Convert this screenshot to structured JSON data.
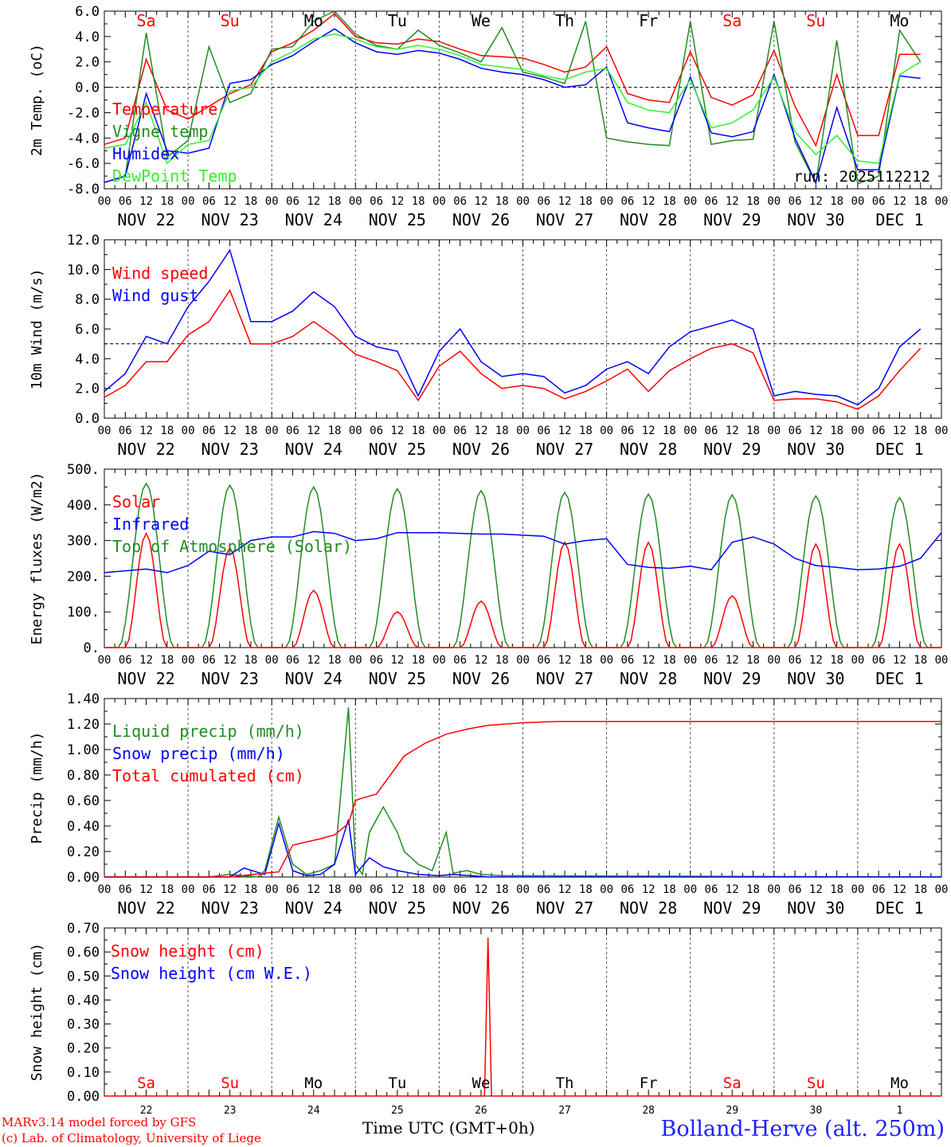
{
  "days": [
    "Sa",
    "Su",
    "Mo",
    "Tu",
    "We",
    "Th",
    "Fr",
    "Sa",
    "Su",
    "Mo"
  ],
  "day_colors": [
    "#ff0000",
    "#ff0000",
    "#000000",
    "#000000",
    "#000000",
    "#000000",
    "#000000",
    "#ff0000",
    "#ff0000",
    "#000000"
  ],
  "dates": [
    "NOV 22",
    "NOV 23",
    "NOV 24",
    "NOV 25",
    "NOV 26",
    "NOV 27",
    "NOV 28",
    "NOV 29",
    "NOV 30",
    "DEC  1"
  ],
  "day_numbers": [
    "22",
    "23",
    "24",
    "25",
    "26",
    "27",
    "28",
    "29",
    "30",
    "1"
  ],
  "hour_ticks": [
    "00",
    "06",
    "12",
    "18"
  ],
  "run_label": "run: 2025112212",
  "footer": {
    "model": "MARv3.14 model forced by GFS",
    "credit": "(c) Lab. of Climatology, University of Liege",
    "time_label": "Time UTC (GMT+0h)",
    "station": "Bolland-Herve (alt. 250m)"
  },
  "colors": {
    "red": "#ff0000",
    "darkgreen": "#228b22",
    "blue": "#0000ff",
    "lightgreen": "#33ee33",
    "grid": "#555555"
  },
  "chart_data": [
    {
      "type": "line",
      "id": "temp",
      "ylabel": "2m Temp. (oC)",
      "ylim": [
        -8,
        6
      ],
      "yticks": [
        "6.0",
        "4.0",
        "2.0",
        "0.0",
        "-2.0",
        "-4.0",
        "-6.0",
        "-8.0"
      ],
      "ref_line": 0,
      "series": [
        {
          "name": "Temperature",
          "color": "red",
          "x": [
            0,
            6,
            12,
            18,
            24,
            30,
            36,
            42,
            48,
            54,
            60,
            66,
            72,
            78,
            84,
            90,
            96,
            102,
            108,
            114,
            120,
            126,
            132,
            138,
            144,
            150,
            156,
            162,
            168,
            174,
            180,
            186,
            192,
            198,
            204,
            210,
            216,
            222,
            228,
            234
          ],
          "y": [
            -4.5,
            -4,
            2.2,
            -1.8,
            -2.5,
            -1.5,
            -0.5,
            0.2,
            2.8,
            3.5,
            4.5,
            5.8,
            4,
            3.5,
            3.4,
            3.8,
            3.6,
            3,
            2.5,
            2.4,
            2.3,
            1.8,
            1.2,
            1.6,
            3.2,
            -0.5,
            -1,
            -1.2,
            2.8,
            -0.8,
            -1.4,
            -0.6,
            2.9,
            -1.5,
            -4.6,
            1,
            -3.8,
            -3.8,
            2.6,
            2.6
          ]
        },
        {
          "name": "Vigne temp",
          "color": "darkgreen",
          "x": [
            0,
            6,
            12,
            18,
            24,
            30,
            36,
            42,
            48,
            54,
            60,
            66,
            72,
            78,
            84,
            90,
            96,
            102,
            108,
            114,
            120,
            126,
            132,
            138,
            144,
            150,
            156,
            162,
            168,
            174,
            180,
            186,
            192,
            198,
            204,
            210,
            216,
            222,
            228,
            234
          ],
          "y": [
            -7.5,
            -7,
            4.3,
            -5.5,
            -4.2,
            3.2,
            -1.2,
            -0.5,
            3,
            3.2,
            5.2,
            6,
            4.2,
            3.3,
            3,
            4.5,
            3.3,
            2.7,
            2,
            4.7,
            1.2,
            0.8,
            0.3,
            5.2,
            -4,
            -4.3,
            -4.5,
            -4.6,
            5.2,
            -4.5,
            -4.2,
            -4.1,
            5.2,
            -4.3,
            -7.6,
            3.7,
            -7.6,
            -7,
            4.5,
            2
          ]
        },
        {
          "name": "Humidex",
          "color": "blue",
          "x": [
            0,
            6,
            12,
            18,
            24,
            30,
            36,
            42,
            48,
            54,
            60,
            66,
            72,
            78,
            84,
            90,
            96,
            102,
            108,
            114,
            120,
            126,
            132,
            138,
            144,
            150,
            156,
            162,
            168,
            174,
            180,
            186,
            192,
            198,
            204,
            210,
            216,
            222,
            228,
            234
          ],
          "y": [
            -7.5,
            -7,
            -0.5,
            -5,
            -5.2,
            -4.8,
            0.3,
            0.6,
            1.8,
            2.5,
            3.6,
            4.6,
            3.5,
            2.8,
            2.6,
            2.9,
            2.7,
            2.2,
            1.5,
            1.2,
            1,
            0.6,
            0,
            0.2,
            1.6,
            -2.8,
            -3.2,
            -3.5,
            0.8,
            -3.6,
            -3.9,
            -3.5,
            1,
            -4,
            -7.5,
            -1.6,
            -6.5,
            -6.5,
            0.9,
            0.7
          ]
        },
        {
          "name": "DewPoint Temp",
          "color": "lightgreen",
          "x": [
            0,
            6,
            12,
            18,
            24,
            30,
            36,
            42,
            48,
            54,
            60,
            66,
            72,
            78,
            84,
            90,
            96,
            102,
            108,
            114,
            120,
            126,
            132,
            138,
            144,
            150,
            156,
            162,
            168,
            174,
            180,
            186,
            192,
            198,
            204,
            210,
            216,
            222,
            228,
            234
          ],
          "y": [
            -4.8,
            -4.5,
            -1.2,
            -6,
            -4.5,
            -4.2,
            -0.3,
            0,
            2,
            2.8,
            3.8,
            4.2,
            3.8,
            3.2,
            3,
            3.3,
            3,
            2.5,
            1.8,
            1.6,
            1.4,
            0.9,
            0.6,
            1.2,
            1.5,
            -1.2,
            -1.8,
            -2,
            0.6,
            -3.2,
            -2.8,
            -1.8,
            0.8,
            -3.5,
            -5.3,
            -3.8,
            -5.8,
            -6,
            1,
            2
          ]
        }
      ]
    },
    {
      "type": "line",
      "id": "wind",
      "ylabel": "10m Wind (m/s)",
      "ylim": [
        0,
        12
      ],
      "yticks": [
        "12.0",
        "10.0",
        "8.0",
        "6.0",
        "4.0",
        "2.0",
        "0.0"
      ],
      "ref_line": 5,
      "series": [
        {
          "name": "Wind speed",
          "color": "red",
          "x": [
            0,
            6,
            12,
            18,
            24,
            30,
            36,
            42,
            48,
            54,
            60,
            66,
            72,
            78,
            84,
            90,
            96,
            102,
            108,
            114,
            120,
            126,
            132,
            138,
            144,
            150,
            156,
            162,
            168,
            174,
            180,
            186,
            192,
            198,
            204,
            210,
            216,
            222,
            228,
            234
          ],
          "y": [
            1.4,
            2.2,
            3.8,
            3.8,
            5.6,
            6.5,
            8.6,
            5,
            5,
            5.5,
            6.5,
            5.5,
            4.3,
            3.8,
            3.2,
            1.2,
            3.5,
            4.5,
            3,
            2,
            2.2,
            2,
            1.3,
            1.8,
            2.5,
            3.3,
            1.8,
            3.2,
            4,
            4.7,
            5,
            4.4,
            1.2,
            1.3,
            1.3,
            1.1,
            0.6,
            1.5,
            3.2,
            4.7
          ]
        },
        {
          "name": "Wind gust",
          "color": "blue",
          "x": [
            0,
            6,
            12,
            18,
            24,
            30,
            36,
            42,
            48,
            54,
            60,
            66,
            72,
            78,
            84,
            90,
            96,
            102,
            108,
            114,
            120,
            126,
            132,
            138,
            144,
            150,
            156,
            162,
            168,
            174,
            180,
            186,
            192,
            198,
            204,
            210,
            216,
            222,
            228,
            234
          ],
          "y": [
            1.8,
            3,
            5.5,
            5,
            7.5,
            9.2,
            11.3,
            6.5,
            6.5,
            7.2,
            8.5,
            7.5,
            5.5,
            4.8,
            4.5,
            1.5,
            4.5,
            6,
            3.8,
            2.8,
            3,
            2.8,
            1.7,
            2.2,
            3.3,
            3.8,
            3,
            4.8,
            5.8,
            6.2,
            6.6,
            6,
            1.5,
            1.8,
            1.6,
            1.5,
            0.9,
            2,
            4.8,
            6
          ]
        }
      ]
    },
    {
      "type": "line",
      "id": "flux",
      "ylabel": "Energy fluxes (W/m2)",
      "ylim": [
        0,
        500
      ],
      "yticks": [
        "500.",
        "400.",
        "300.",
        "200.",
        "100.",
        "0."
      ],
      "ref_line": null,
      "peaks": {
        "solar": [
          320,
          280,
          160,
          100,
          130,
          295,
          295,
          145,
          290,
          290
        ],
        "toa": [
          460,
          455,
          450,
          445,
          440,
          435,
          430,
          428,
          425,
          420
        ]
      },
      "series": [
        {
          "name": "Solar",
          "color": "red"
        },
        {
          "name": "Infrared",
          "color": "blue",
          "x": [
            0,
            12,
            18,
            24,
            30,
            36,
            42,
            48,
            54,
            60,
            66,
            72,
            78,
            84,
            90,
            96,
            102,
            108,
            114,
            120,
            126,
            132,
            138,
            144,
            150,
            156,
            162,
            168,
            174,
            180,
            186,
            192,
            198,
            204,
            210,
            216,
            222,
            228,
            234,
            240
          ],
          "y": [
            210,
            220,
            210,
            230,
            270,
            260,
            300,
            310,
            310,
            325,
            320,
            300,
            305,
            322,
            322,
            322,
            320,
            318,
            318,
            315,
            312,
            290,
            300,
            305,
            233,
            225,
            222,
            228,
            218,
            295,
            310,
            290,
            250,
            230,
            225,
            218,
            220,
            228,
            250,
            322
          ]
        },
        {
          "name": "Top of Atmosphere (Solar)",
          "color": "darkgreen"
        }
      ]
    },
    {
      "type": "line",
      "id": "precip",
      "ylabel": "Precip (mm/h)",
      "ylim": [
        0,
        1.4
      ],
      "yticks": [
        "1.40",
        "1.20",
        "1.00",
        "0.80",
        "0.60",
        "0.40",
        "0.20",
        "0.00"
      ],
      "ref_line": null,
      "series": [
        {
          "name": "Liquid precip (mm/h)",
          "color": "darkgreen",
          "x": [
            0,
            30,
            36,
            40,
            44,
            46,
            50,
            54,
            58,
            62,
            66,
            70,
            72,
            74,
            76,
            80,
            84,
            86,
            90,
            94,
            98,
            100,
            104,
            108,
            114,
            120,
            240
          ],
          "y": [
            0,
            0,
            0.02,
            0.01,
            0,
            0.05,
            0.47,
            0.1,
            0.02,
            0.05,
            0.1,
            1.33,
            0.1,
            0.02,
            0.35,
            0.55,
            0.35,
            0.2,
            0.1,
            0.05,
            0.35,
            0.03,
            0.05,
            0.02,
            0.01,
            0.01,
            0
          ]
        },
        {
          "name": "Snow precip (mm/h)",
          "color": "blue",
          "x": [
            0,
            36,
            40,
            46,
            50,
            54,
            58,
            62,
            66,
            70,
            72,
            76,
            80,
            84,
            90,
            96,
            100,
            110,
            240
          ],
          "y": [
            0,
            0,
            0.07,
            0.02,
            0.42,
            0.05,
            0.01,
            0.02,
            0.1,
            0.45,
            0.02,
            0.15,
            0.08,
            0.05,
            0.02,
            0.01,
            0.02,
            0,
            0
          ]
        },
        {
          "name": "Total cumulated (cm)",
          "color": "red",
          "x": [
            0,
            36,
            46,
            50,
            54,
            62,
            66,
            70,
            72,
            74,
            78,
            82,
            86,
            92,
            98,
            104,
            110,
            120,
            130,
            140,
            240
          ],
          "y": [
            0,
            0,
            0.03,
            0.04,
            0.25,
            0.3,
            0.33,
            0.42,
            0.6,
            0.62,
            0.65,
            0.8,
            0.95,
            1.05,
            1.12,
            1.16,
            1.19,
            1.21,
            1.22,
            1.22,
            1.22
          ]
        }
      ]
    },
    {
      "type": "line",
      "id": "snow",
      "ylabel": "Snow height (cm)",
      "ylim": [
        0,
        0.7
      ],
      "yticks": [
        "0.70",
        "0.60",
        "0.50",
        "0.40",
        "0.30",
        "0.20",
        "0.10",
        "0.00"
      ],
      "ref_line": null,
      "series": [
        {
          "name": "Snow height (cm)",
          "color": "red",
          "x": [
            0,
            109,
            110,
            111,
            240
          ],
          "y": [
            0,
            0,
            0.66,
            0,
            0
          ]
        },
        {
          "name": "Snow height (cm W.E.)",
          "color": "blue",
          "x": [],
          "y": []
        }
      ]
    }
  ]
}
